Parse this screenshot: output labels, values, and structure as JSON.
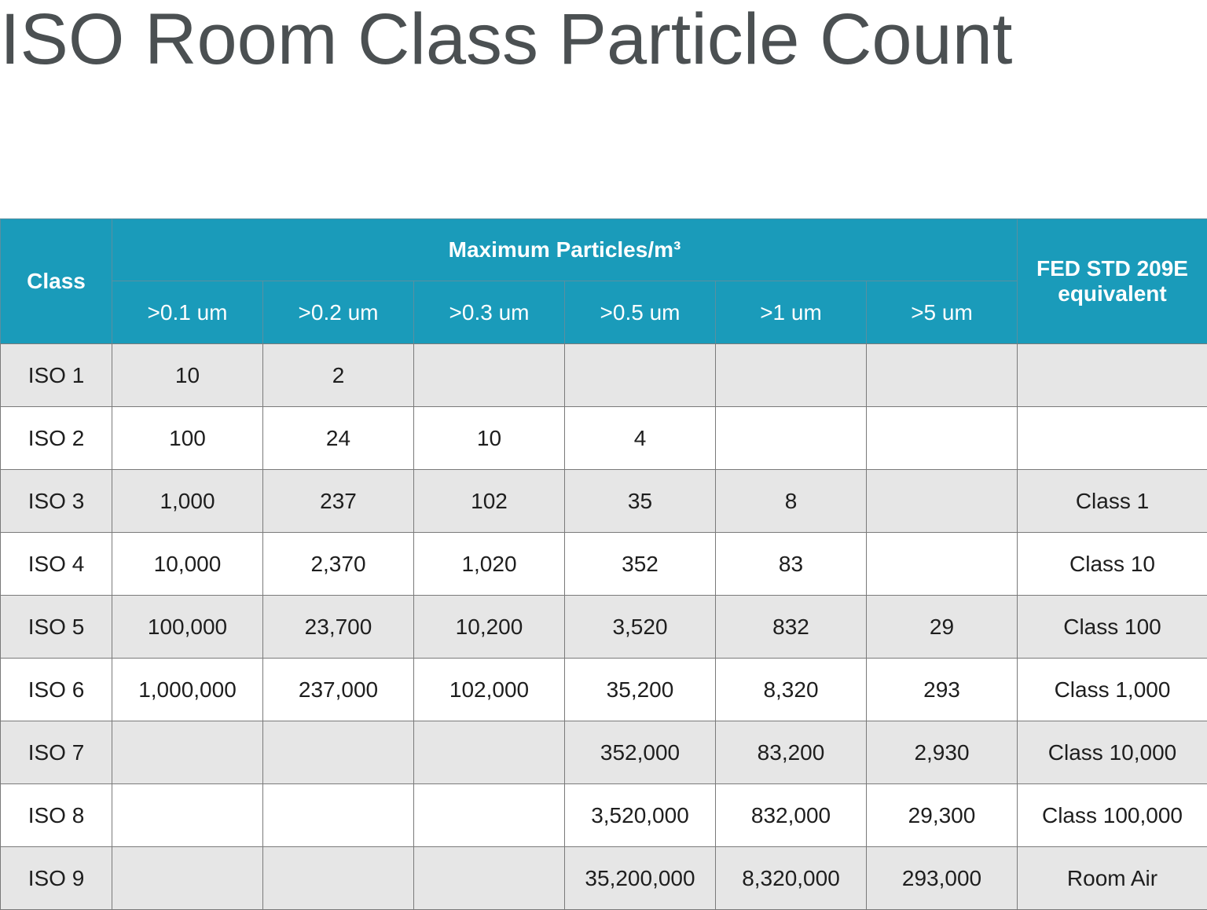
{
  "title": "ISO Room Class Particle Count",
  "table": {
    "header": {
      "class": "Class",
      "group": "Maximum Particles/m³",
      "sizes": [
        ">0.1 um",
        ">0.2 um",
        ">0.3 um",
        ">0.5 um",
        ">1 um",
        ">5 um"
      ],
      "equivalent": "FED STD 209E equivalent"
    },
    "rows": [
      [
        "ISO 1",
        "10",
        "2",
        null,
        null,
        null,
        null,
        null
      ],
      [
        "ISO 2",
        "100",
        "24",
        "10",
        "4",
        null,
        null,
        null
      ],
      [
        "ISO 3",
        "1,000",
        "237",
        "102",
        "35",
        "8",
        null,
        "Class 1"
      ],
      [
        "ISO 4",
        "10,000",
        "2,370",
        "1,020",
        "352",
        "83",
        null,
        "Class 10"
      ],
      [
        "ISO 5",
        "100,000",
        "23,700",
        "10,200",
        "3,520",
        "832",
        "29",
        "Class 100"
      ],
      [
        "ISO 6",
        "1,000,000",
        "237,000",
        "102,000",
        "35,200",
        "8,320",
        "293",
        "Class 1,000"
      ],
      [
        "ISO 7",
        null,
        null,
        null,
        "352,000",
        "83,200",
        "2,930",
        "Class 10,000"
      ],
      [
        "ISO 8",
        null,
        null,
        null,
        "3,520,000",
        "832,000",
        "29,300",
        "Class 100,000"
      ],
      [
        "ISO 9",
        null,
        null,
        null,
        "35,200,000",
        "8,320,000",
        "293,000",
        "Room Air"
      ]
    ]
  }
}
